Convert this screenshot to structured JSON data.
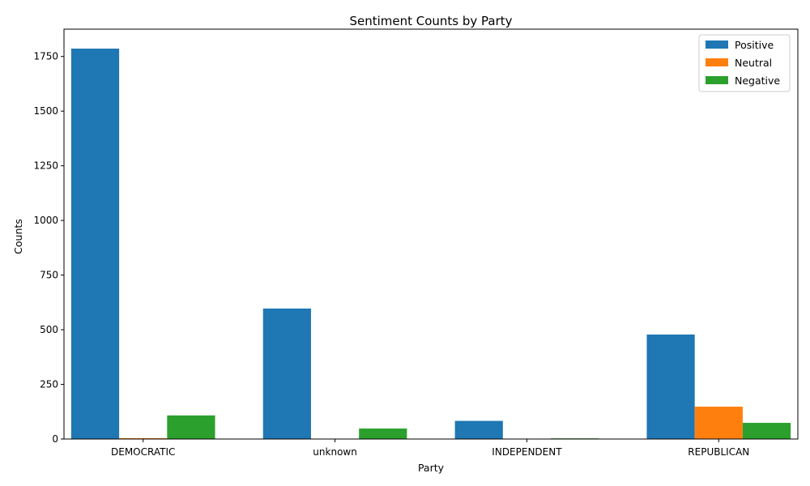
{
  "chart_data": {
    "type": "bar",
    "title": "Sentiment Counts by Party",
    "xlabel": "Party",
    "ylabel": "Counts",
    "categories": [
      "DEMOCRATIC",
      "unknown",
      "INDEPENDENT",
      "REPUBLICAN"
    ],
    "series": [
      {
        "name": "Positive",
        "color": "#1f77b4",
        "values": [
          1786,
          597,
          83,
          478
        ]
      },
      {
        "name": "Neutral",
        "color": "#ff7f0e",
        "values": [
          4,
          0,
          0,
          148
        ]
      },
      {
        "name": "Negative",
        "color": "#2ca02c",
        "values": [
          108,
          48,
          3,
          74
        ]
      }
    ],
    "ylim": [
      0,
      1875
    ],
    "yticks": [
      0,
      250,
      500,
      750,
      1000,
      1250,
      1500,
      1750
    ],
    "grid": false,
    "legend": "top-right"
  }
}
